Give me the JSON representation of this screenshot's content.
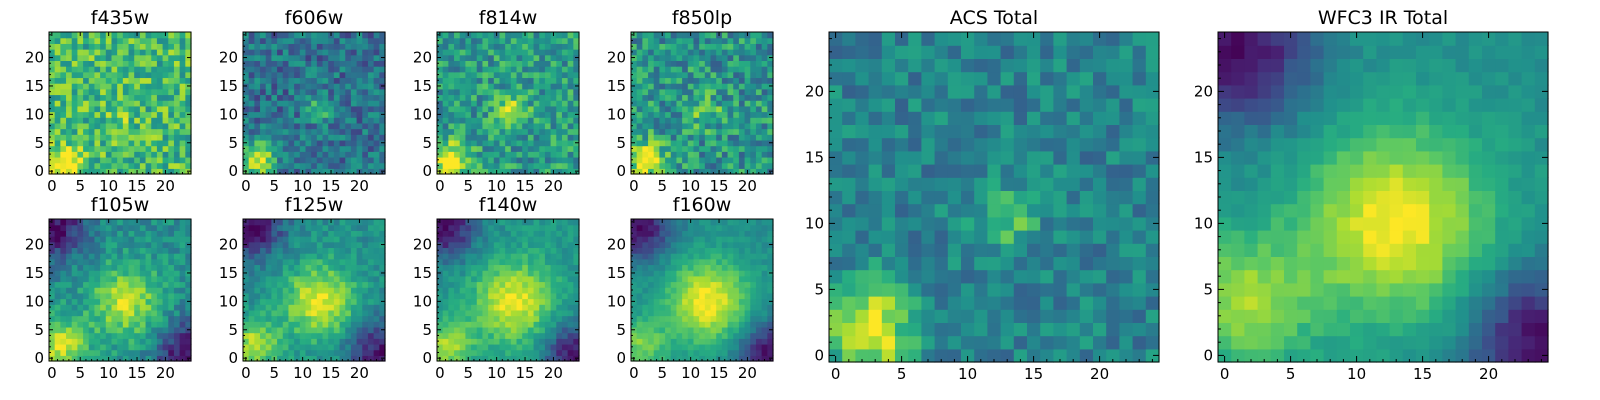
{
  "figure": {
    "colormap": "viridis",
    "grid_size": 25,
    "colors": {
      "low": "#440154",
      "mid": "#21918c",
      "high": "#fde725",
      "frame": "#000000",
      "background": "#ffffff"
    }
  },
  "chart_data": [
    {
      "type": "heatmap",
      "title": "f435w",
      "xticks": [
        0,
        5,
        10,
        15,
        20
      ],
      "yticks": [
        0,
        5,
        10,
        15,
        20
      ],
      "xlim": [
        0,
        25
      ],
      "ylim": [
        0,
        25
      ],
      "bright_spots": [
        {
          "x": 2,
          "y": 1.5,
          "sigma": 2.0,
          "amp": 0.45
        },
        {
          "x": 12.5,
          "y": 11,
          "sigma": 1.6,
          "amp": 0.2
        }
      ],
      "base_level": 0.68,
      "noise": 0.22
    },
    {
      "type": "heatmap",
      "title": "f606w",
      "xticks": [
        0,
        5,
        10,
        15,
        20
      ],
      "yticks": [
        0,
        5,
        10,
        15,
        20
      ],
      "xlim": [
        0,
        25
      ],
      "ylim": [
        0,
        25
      ],
      "bright_spots": [
        {
          "x": 2,
          "y": 2,
          "sigma": 2.2,
          "amp": 0.6
        },
        {
          "x": 13,
          "y": 11,
          "sigma": 1.5,
          "amp": 0.35
        }
      ],
      "base_level": 0.38,
      "noise": 0.18
    },
    {
      "type": "heatmap",
      "title": "f814w",
      "xticks": [
        0,
        5,
        10,
        15,
        20
      ],
      "yticks": [
        0,
        5,
        10,
        15,
        20
      ],
      "xlim": [
        0,
        25
      ],
      "ylim": [
        0,
        25
      ],
      "bright_spots": [
        {
          "x": 2,
          "y": 2,
          "sigma": 2.2,
          "amp": 0.5
        },
        {
          "x": 12.5,
          "y": 10.5,
          "sigma": 2.0,
          "amp": 0.35
        }
      ],
      "base_level": 0.55,
      "noise": 0.2
    },
    {
      "type": "heatmap",
      "title": "f850lp",
      "xticks": [
        0,
        5,
        10,
        15,
        20
      ],
      "yticks": [
        0,
        5,
        10,
        15,
        20
      ],
      "xlim": [
        0,
        25
      ],
      "ylim": [
        0,
        25
      ],
      "bright_spots": [
        {
          "x": 2,
          "y": 2,
          "sigma": 2.3,
          "amp": 0.5
        },
        {
          "x": 12.5,
          "y": 10.5,
          "sigma": 2.0,
          "amp": 0.25
        }
      ],
      "base_level": 0.52,
      "noise": 0.22
    },
    {
      "type": "heatmap",
      "title": "f105w",
      "xticks": [
        0,
        5,
        10,
        15,
        20
      ],
      "yticks": [
        0,
        5,
        10,
        15,
        20
      ],
      "xlim": [
        0,
        25
      ],
      "ylim": [
        0,
        25
      ],
      "bright_spots": [
        {
          "x": 13,
          "y": 10,
          "sigma": 4.5,
          "amp": 0.4
        },
        {
          "x": 1.5,
          "y": 2.5,
          "sigma": 3.0,
          "amp": 0.45
        }
      ],
      "dark_corners": [
        "top-left",
        "bottom-right"
      ],
      "base_level": 0.5,
      "noise": 0.12
    },
    {
      "type": "heatmap",
      "title": "f125w",
      "xticks": [
        0,
        5,
        10,
        15,
        20
      ],
      "yticks": [
        0,
        5,
        10,
        15,
        20
      ],
      "xlim": [
        0,
        25
      ],
      "ylim": [
        0,
        25
      ],
      "bright_spots": [
        {
          "x": 13,
          "y": 10,
          "sigma": 4.5,
          "amp": 0.45
        },
        {
          "x": 1.5,
          "y": 2.5,
          "sigma": 3.0,
          "amp": 0.4
        }
      ],
      "dark_corners": [
        "top-left",
        "bottom-right"
      ],
      "base_level": 0.5,
      "noise": 0.1
    },
    {
      "type": "heatmap",
      "title": "f140w",
      "xticks": [
        0,
        5,
        10,
        15,
        20
      ],
      "yticks": [
        0,
        5,
        10,
        15,
        20
      ],
      "xlim": [
        0,
        25
      ],
      "ylim": [
        0,
        25
      ],
      "bright_spots": [
        {
          "x": 13,
          "y": 10,
          "sigma": 5.0,
          "amp": 0.45
        },
        {
          "x": 1.5,
          "y": 2.5,
          "sigma": 3.0,
          "amp": 0.35
        }
      ],
      "dark_corners": [
        "top-left",
        "bottom-right"
      ],
      "base_level": 0.52,
      "noise": 0.08
    },
    {
      "type": "heatmap",
      "title": "f160w",
      "xticks": [
        0,
        5,
        10,
        15,
        20
      ],
      "yticks": [
        0,
        5,
        10,
        15,
        20
      ],
      "xlim": [
        0,
        25
      ],
      "ylim": [
        0,
        25
      ],
      "bright_spots": [
        {
          "x": 13,
          "y": 10,
          "sigma": 5.0,
          "amp": 0.5
        },
        {
          "x": 1.5,
          "y": 2.5,
          "sigma": 3.0,
          "amp": 0.3
        }
      ],
      "dark_corners": [
        "top-left",
        "bottom-right"
      ],
      "base_level": 0.5,
      "noise": 0.06
    },
    {
      "type": "heatmap",
      "title": "ACS Total",
      "xticks": [
        0,
        5,
        10,
        15,
        20
      ],
      "yticks": [
        0,
        5,
        10,
        15,
        20
      ],
      "xlim": [
        0,
        25
      ],
      "ylim": [
        0,
        25
      ],
      "bright_spots": [
        {
          "x": 2.5,
          "y": 2,
          "sigma": 2.4,
          "amp": 0.55
        },
        {
          "x": 13,
          "y": 10.5,
          "sigma": 1.6,
          "amp": 0.3
        }
      ],
      "base_level": 0.45,
      "noise": 0.14
    },
    {
      "type": "heatmap",
      "title": "WFC3 IR Total",
      "xticks": [
        0,
        5,
        10,
        15,
        20
      ],
      "yticks": [
        0,
        5,
        10,
        15,
        20
      ],
      "xlim": [
        0,
        25
      ],
      "ylim": [
        0,
        25
      ],
      "bright_spots": [
        {
          "x": 13,
          "y": 10,
          "sigma": 5.0,
          "amp": 0.5
        },
        {
          "x": 1.5,
          "y": 4,
          "sigma": 3.5,
          "amp": 0.35
        }
      ],
      "dark_corners": [
        "top-left",
        "bottom-right"
      ],
      "base_level": 0.5,
      "noise": 0.05
    }
  ]
}
